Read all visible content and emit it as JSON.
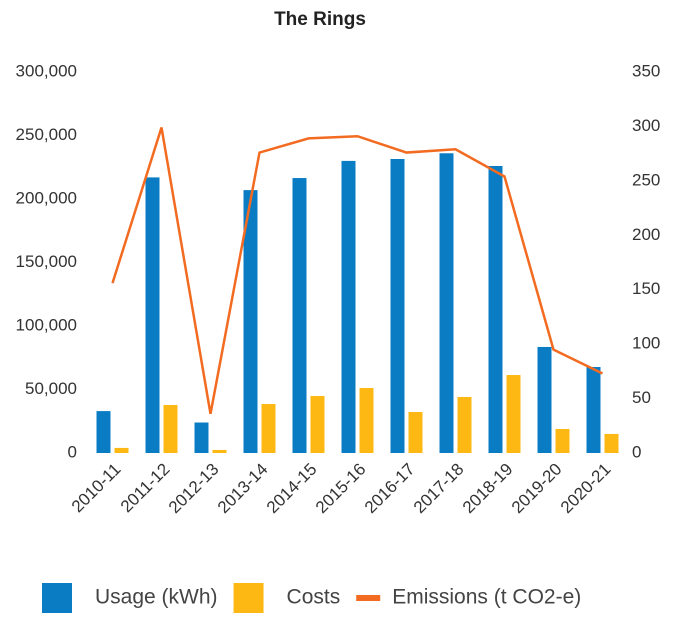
{
  "chart_data": {
    "type": "bar_line",
    "title": "The Rings",
    "categories": [
      "2010-11",
      "2011-12",
      "2012-13",
      "2013-14",
      "2014-15",
      "2015-16",
      "2016-17",
      "2017-18",
      "2018-19",
      "2019-20",
      "2020-21"
    ],
    "series": [
      {
        "name": "Usage (kWh)",
        "color": "#0a7cc4",
        "type": "bar",
        "values": [
          33000,
          217000,
          24000,
          207000,
          216500,
          230000,
          231500,
          236000,
          226000,
          83500,
          67700
        ]
      },
      {
        "name": "Costs",
        "color": "#fdb813",
        "type": "bar",
        "values": [
          4000,
          37800,
          2400,
          38600,
          44900,
          51200,
          32300,
          44100,
          61400,
          18900,
          15000
        ]
      },
      {
        "name": "Emissions (t CO2-e)",
        "color": "#f26b21",
        "type": "line",
        "axis": "y2",
        "values": [
          156,
          299,
          36,
          276,
          289,
          291,
          276,
          279,
          254,
          95,
          73
        ]
      }
    ],
    "ylim": [
      0,
      300000
    ],
    "yticks": [
      0,
      {
        "value": 50000,
        "label": "50,000"
      },
      {
        "value": 100000,
        "label": "100,000"
      },
      {
        "value": 150000,
        "label": "150,000"
      },
      {
        "value": 200000,
        "label": "200,000"
      },
      {
        "value": 250000,
        "label": "250,000"
      },
      {
        "value": 300000,
        "label": "300,000"
      }
    ],
    "y2lim": [
      0,
      350
    ],
    "y2ticks": [
      0,
      50,
      100,
      150,
      200,
      250,
      300,
      350
    ],
    "legend": "bottom"
  }
}
